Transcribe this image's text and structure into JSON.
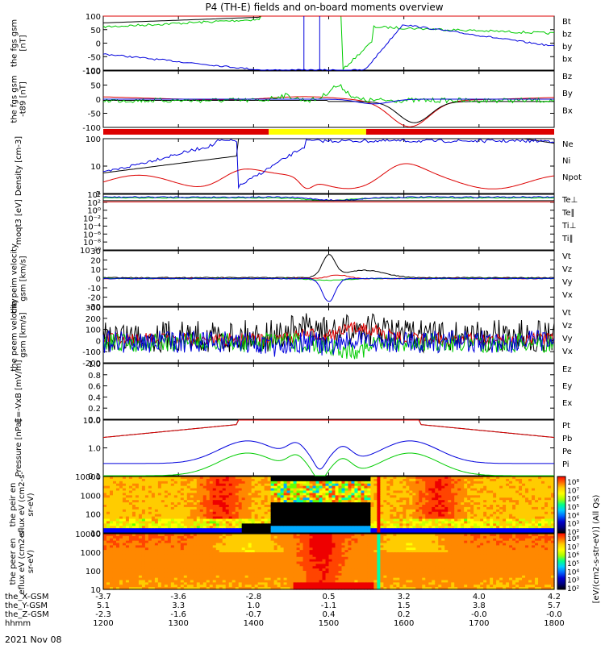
{
  "title": "P4 (TH-E) fields and on-board moments overview",
  "date_label": "2021 Nov 08",
  "footer": {
    "rows": [
      {
        "label": "the_X-GSM",
        "values": [
          "-3.7",
          "-3.6",
          "-2.8",
          "0.5",
          "3.2",
          "4.0",
          "4.2"
        ]
      },
      {
        "label": "the_Y-GSM",
        "values": [
          "5.1",
          "3.3",
          "1.0",
          "-1.1",
          "1.5",
          "3.8",
          "5.7"
        ]
      },
      {
        "label": "the_Z-GSM",
        "values": [
          "-2.3",
          "-1.6",
          "-0.7",
          "0.4",
          "0.2",
          "-0.0",
          "-0.0"
        ]
      },
      {
        "label": "hhmm",
        "values": [
          "1200",
          "1300",
          "1400",
          "1500",
          "1600",
          "1700",
          "1800"
        ]
      }
    ]
  },
  "colors": {
    "black": "#000000",
    "red": "#dd0000",
    "green": "#00cc00",
    "blue": "#0000dd",
    "yellow": "#ffff00"
  },
  "status_bar": {
    "colors": [
      "red",
      "yellow",
      "red"
    ],
    "yellow_from": "1420",
    "yellow_to": "1540"
  },
  "colorbar": {
    "label": "[eV/(cm2-s-str-eV)] (All Qs)",
    "ticks": [
      "10⁸",
      "10⁷",
      "10⁶",
      "10⁵",
      "10⁴",
      "10³",
      "10²",
      "10⁸",
      "10⁷",
      "10⁶",
      "10⁵",
      "10⁴",
      "10³",
      "10²"
    ]
  },
  "chart_data": [
    {
      "type": "line",
      "ylabel": "the fgs gsm [nT]",
      "ylim": [
        -100,
        100
      ],
      "yticks": [
        "100",
        "50",
        "0",
        "-50",
        "-100"
      ],
      "legend": [
        "Bt",
        "bz",
        "by",
        "bx"
      ],
      "legend_colors": [
        "black",
        "red",
        "green",
        "blue"
      ]
    },
    {
      "type": "line",
      "ylabel": "the fgs gsm -t89 [nT]",
      "ylim": [
        -120,
        120
      ],
      "yticks": [
        "100",
        "50",
        "0",
        "-50",
        "-100"
      ],
      "legend": [
        "Bz",
        "By",
        "Bx"
      ],
      "legend_colors": [
        "red",
        "green",
        "blue"
      ]
    },
    {
      "type": "line",
      "ylabel": "Density [cm-3]",
      "scale": "log",
      "yticks": [
        "100",
        "10",
        "1"
      ],
      "legend": [
        "Ne",
        "Ni",
        "Npot"
      ],
      "legend_colors": [
        "red",
        "black",
        "blue"
      ]
    },
    {
      "type": "line",
      "ylabel": "moqt3 [eV]",
      "scale": "log",
      "yticks": [
        "10⁴",
        "10²",
        "10⁰",
        "10⁻²",
        "10⁻⁴",
        "10⁻⁶",
        "10⁻⁸",
        "10⁻¹⁰"
      ],
      "legend": [
        "Te⊥",
        "Te∥",
        "Ti⊥",
        "Ti∥"
      ],
      "legend_colors": [
        "red",
        "black",
        "blue",
        "green"
      ]
    },
    {
      "type": "line",
      "ylabel": "the peim velocity gsm [km/s]",
      "ylim": [
        -30,
        30
      ],
      "yticks": [
        "30",
        "20",
        "10",
        "0",
        "-10",
        "-20",
        "-30"
      ],
      "legend": [
        "Vt",
        "Vz",
        "Vy",
        "Vx"
      ],
      "legend_colors": [
        "black",
        "red",
        "green",
        "blue"
      ]
    },
    {
      "type": "line",
      "ylabel": "the peem velocity gsm [km/s]",
      "ylim": [
        -200,
        300
      ],
      "yticks": [
        "300",
        "200",
        "100",
        "0",
        "-100",
        "-200"
      ],
      "legend": [
        "Vt",
        "Vz",
        "Vy",
        "Vx"
      ],
      "legend_colors": [
        "black",
        "red",
        "green",
        "blue"
      ]
    },
    {
      "type": "line",
      "ylabel": "E=-VxB [mV/m]",
      "ylim": [
        0,
        1
      ],
      "yticks": [
        "1.0",
        "0.8",
        "0.6",
        "0.4",
        "0.2",
        "0.0"
      ],
      "legend": [
        "Ez",
        "Ey",
        "Ex"
      ],
      "legend_colors": [
        "red",
        "green",
        "blue"
      ]
    },
    {
      "type": "line",
      "ylabel": "Pressure [nPa]",
      "scale": "log",
      "yticks": [
        "10.0",
        "1.0",
        "0.1"
      ],
      "legend": [
        "Pt",
        "Pb",
        "Pe",
        "Pi"
      ],
      "legend_colors": [
        "black",
        "red",
        "green",
        "blue"
      ]
    },
    {
      "type": "heatmap",
      "ylabel": "the peir en eflux eV (cm2-s- sr-eV)",
      "scale": "log",
      "yticks": [
        "10000",
        "1000",
        "100",
        "10"
      ]
    },
    {
      "type": "heatmap",
      "ylabel": "the peer en eflux eV (cm2-s- sr-eV)",
      "scale": "log",
      "yticks": [
        "10000",
        "1000",
        "100",
        "10"
      ]
    }
  ]
}
